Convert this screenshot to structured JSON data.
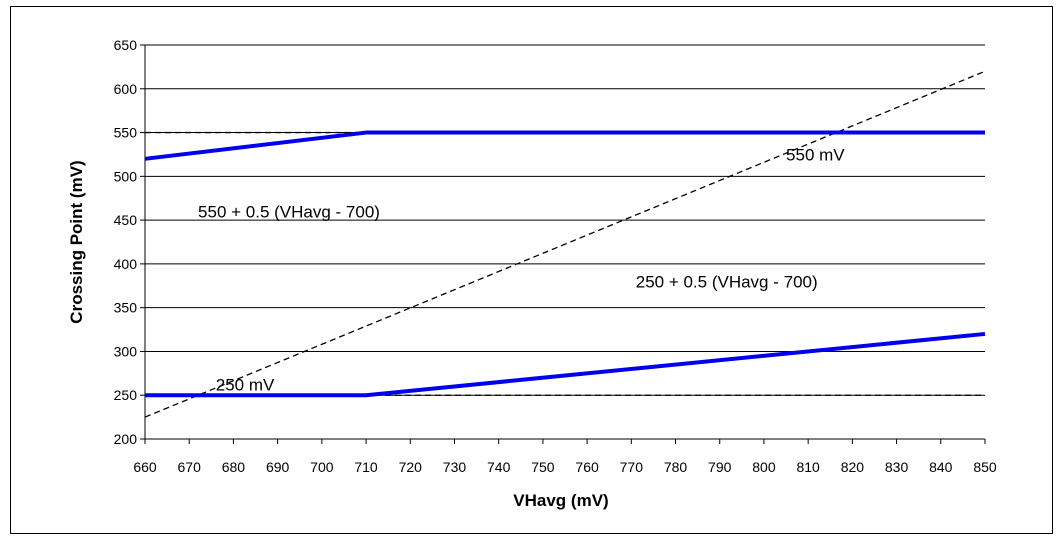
{
  "chart_data": {
    "type": "line",
    "xlabel": "VHavg (mV)",
    "ylabel": "Crossing Point (mV)",
    "xlim": [
      660,
      850
    ],
    "ylim": [
      200,
      650
    ],
    "x_ticks": [
      660,
      670,
      680,
      690,
      700,
      710,
      720,
      730,
      740,
      750,
      760,
      770,
      780,
      790,
      800,
      810,
      820,
      830,
      840,
      850
    ],
    "y_ticks": [
      200,
      250,
      300,
      350,
      400,
      450,
      500,
      550,
      600,
      650
    ],
    "grid": "horizontal",
    "series": [
      {
        "style": "solid",
        "color": "#0000ee",
        "x": [
          660,
          710,
          850
        ],
        "y": [
          520,
          550,
          550
        ]
      },
      {
        "style": "solid",
        "color": "#0000ee",
        "x": [
          660,
          710,
          850
        ],
        "y": [
          250,
          250,
          320
        ]
      },
      {
        "style": "dashed",
        "color": "#000000",
        "x": [
          660,
          850
        ],
        "y": [
          550,
          550
        ]
      },
      {
        "style": "dashed",
        "color": "#000000",
        "x": [
          660,
          850
        ],
        "y": [
          225,
          620
        ]
      },
      {
        "style": "dashed",
        "color": "#000000",
        "x": [
          660,
          850
        ],
        "y": [
          250,
          250
        ]
      }
    ],
    "annotations": [
      {
        "text": "550 mV",
        "x": 805,
        "y": 525
      },
      {
        "text": "550 + 0.5 (VHavg - 700)",
        "x": 672,
        "y": 460
      },
      {
        "text": "250 + 0.5 (VHavg - 700)",
        "x": 771,
        "y": 380
      },
      {
        "text": "250 mV",
        "x": 676,
        "y": 262
      }
    ]
  }
}
